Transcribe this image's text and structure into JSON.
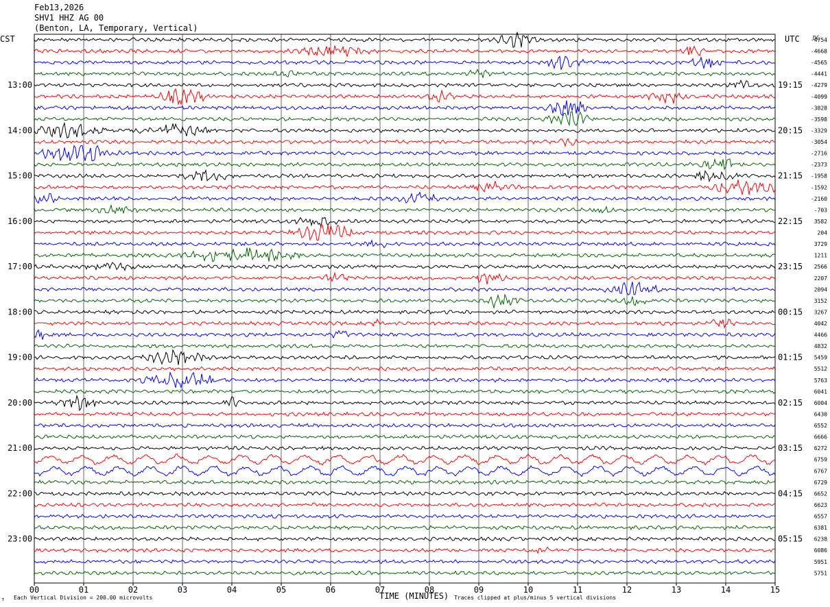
{
  "header": {
    "date": "Feb13,2026",
    "station": "SHV1 HHZ AG 00",
    "location": "(Benton, LA, Temporary, Vertical)"
  },
  "left_zone": "CST",
  "right_zone": "UTC",
  "dc_label": "DC",
  "footer": {
    "scale_note": "Each Vertical Division =  200.00 microvolts",
    "xlabel": "TIME (MINUTES)",
    "clip_note": "Traces clipped at plus/minus 5 vertical divisions",
    "mark": "↑"
  },
  "colors": {
    "trace_cycle": [
      "#000000",
      "#ff0000",
      "#0000ff",
      "#006400"
    ],
    "grid": "#000000"
  },
  "chart_data": {
    "type": "line",
    "title": "",
    "xlabel": "TIME (MINUTES)",
    "xlim": [
      0,
      15
    ],
    "x_ticks": [
      "00",
      "01",
      "02",
      "03",
      "04",
      "05",
      "06",
      "07",
      "08",
      "09",
      "10",
      "11",
      "12",
      "13",
      "14",
      "15"
    ],
    "rows": 48,
    "row_minutes": 15,
    "left_hour_labels": [
      "13:00",
      "14:00",
      "15:00",
      "16:00",
      "17:00",
      "18:00",
      "19:00",
      "20:00",
      "21:00",
      "22:00",
      "23:00"
    ],
    "right_hour_labels": [
      "19:15",
      "20:15",
      "21:15",
      "22:15",
      "23:15",
      "00:15",
      "01:15",
      "02:15",
      "03:15",
      "04:15",
      "05:15"
    ],
    "dc_offsets": [
      "-4754",
      "-4668",
      "-4565",
      "-4441",
      "-4279",
      "-4099",
      "-3828",
      "-3598",
      "-3329",
      "-3054",
      "-2716",
      "-2373",
      "-1958",
      "-1592",
      "-2160",
      "-703",
      "3582",
      "204",
      "3729",
      "1211",
      "2566",
      "2207",
      "2094",
      "3152",
      "3267",
      "4042",
      "4466",
      "4832",
      "5459",
      "5512",
      "5763",
      "6041",
      "6004",
      "6430",
      "6552",
      "6666",
      "6272",
      "6759",
      "6767",
      "6729",
      "6652",
      "6623",
      "6557",
      "6381",
      "6238",
      "6086",
      "5951",
      "5751"
    ]
  }
}
